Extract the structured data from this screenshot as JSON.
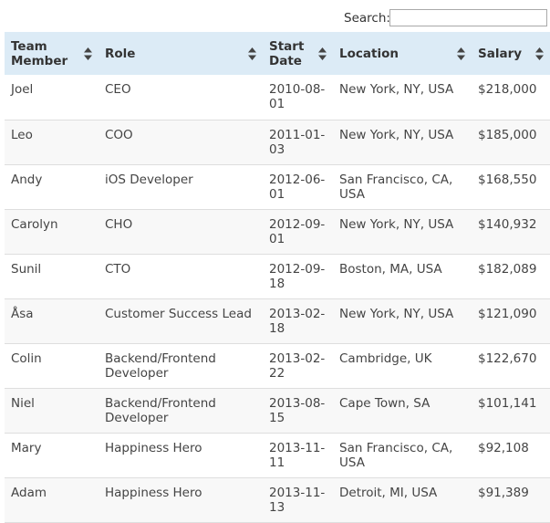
{
  "search": {
    "label": "Search:",
    "value": "",
    "placeholder": ""
  },
  "table": {
    "columns": [
      {
        "label": "Team Member"
      },
      {
        "label": "Role"
      },
      {
        "label": "Start Date"
      },
      {
        "label": "Location"
      },
      {
        "label": "Salary"
      }
    ],
    "rows": [
      {
        "member": "Joel",
        "role": "CEO",
        "start_date": "2010-08-01",
        "location": "New York, NY, USA",
        "salary": "$218,000"
      },
      {
        "member": "Leo",
        "role": "COO",
        "start_date": "2011-01-03",
        "location": "New York, NY, USA",
        "salary": "$185,000"
      },
      {
        "member": "Andy",
        "role": "iOS Developer",
        "start_date": "2012-06-01",
        "location": "San Francisco, CA, USA",
        "salary": "$168,550"
      },
      {
        "member": "Carolyn",
        "role": "CHO",
        "start_date": "2012-09-01",
        "location": "New York, NY, USA",
        "salary": "$140,932"
      },
      {
        "member": "Sunil",
        "role": "CTO",
        "start_date": "2012-09-18",
        "location": "Boston, MA, USA",
        "salary": "$182,089"
      },
      {
        "member": "Åsa",
        "role": "Customer Success Lead",
        "start_date": "2013-02-18",
        "location": "New York, NY, USA",
        "salary": "$121,090"
      },
      {
        "member": "Colin",
        "role": "Backend/Frontend Developer",
        "start_date": "2013-02-22",
        "location": "Cambridge, UK",
        "salary": "$122,670"
      },
      {
        "member": "Niel",
        "role": "Backend/Frontend Developer",
        "start_date": "2013-08-15",
        "location": "Cape Town, SA",
        "salary": "$101,141"
      },
      {
        "member": "Mary",
        "role": "Happiness Hero",
        "start_date": "2013-11-11",
        "location": "San Francisco, CA, USA",
        "salary": "$92,108"
      },
      {
        "member": "Adam",
        "role": "Happiness Hero",
        "start_date": "2013-11-13",
        "location": "Detroit, MI, USA",
        "salary": "$91,389"
      }
    ]
  },
  "icons": {
    "sort": "sort-both-icon"
  },
  "colors": {
    "header_bg": "#dcebf6",
    "row_odd": "#ffffff",
    "row_even": "#f8f8f8",
    "row_border": "#dedede"
  }
}
